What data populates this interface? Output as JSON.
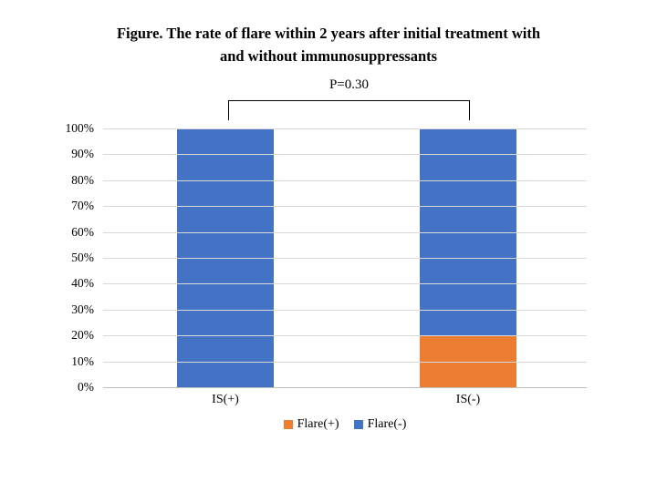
{
  "chart_data": {
    "type": "bar",
    "stacked": true,
    "title_line1": "Figure. The rate of flare within 2 years after initial treatment with",
    "title_line2": "and without immunosuppressants",
    "categories": [
      "IS(+)",
      "IS(-)"
    ],
    "series": [
      {
        "name": "Flare(+)",
        "color": "#ED7D31",
        "values": [
          0,
          20
        ]
      },
      {
        "name": "Flare(-)",
        "color": "#4472C4",
        "values": [
          100,
          80
        ]
      }
    ],
    "annotation": "P=0.30",
    "y_ticks": [
      "0%",
      "10%",
      "20%",
      "30%",
      "40%",
      "50%",
      "60%",
      "70%",
      "80%",
      "90%",
      "100%"
    ],
    "ylim": [
      0,
      100
    ],
    "ylabel": "",
    "xlabel": "",
    "grid": true,
    "legend_position": "bottom"
  },
  "colors": {
    "background": "#FFFFFF",
    "gridline": "#D9D9D9",
    "axis": "#BFBFBF",
    "text": "#000000",
    "bracket": "#000000"
  }
}
